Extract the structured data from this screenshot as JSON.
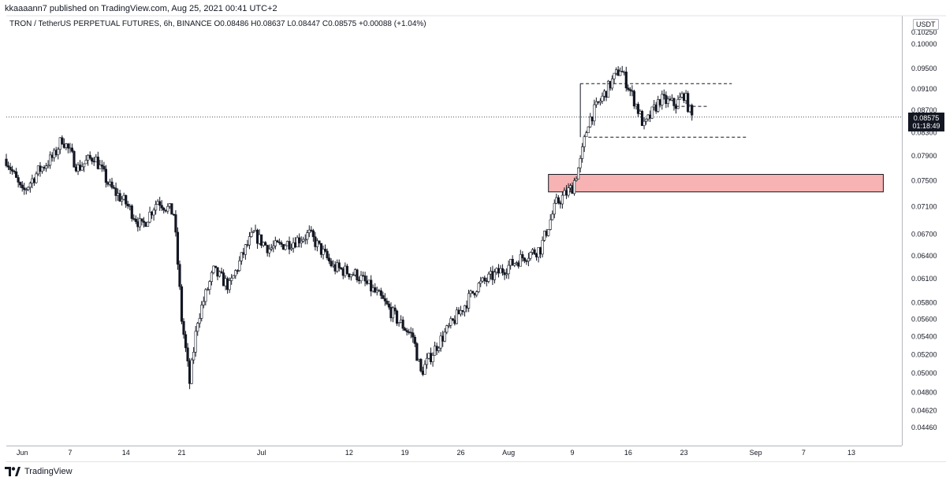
{
  "header": {
    "publisher": "kkaaaann7 published on TradingView.com, Aug 25, 2021 00:41 UTC+2",
    "symbol": "TRON / TetherUS PERPETUAL FUTURES, 6h, BINANCE",
    "ohlc": "O0.08486 H0.08637 L0.08447 C0.08575 +0.00088 (+1.04%)"
  },
  "price_axis": {
    "unit": "USDT",
    "last_price": "0.08575",
    "countdown": "01:18:49"
  },
  "footer": {
    "brand": "TradingView"
  },
  "colors": {
    "up": "#ffffff",
    "down": "#131722",
    "zone_fill": "#f7b3b3",
    "zone_border": "#131722"
  },
  "chart_data": {
    "type": "candlestick",
    "scale": "log",
    "x_labels": [
      "Jun",
      "7",
      "14",
      "21",
      "Jul",
      "12",
      "19",
      "26",
      "Aug",
      "9",
      "16",
      "23",
      "Sep",
      "7",
      "13"
    ],
    "y_ticks": [
      "0.10250",
      "0.10000",
      "0.09500",
      "0.09100",
      "0.08700",
      "0.08300",
      "0.07900",
      "0.07500",
      "0.07100",
      "0.06700",
      "0.06400",
      "0.06100",
      "0.05800",
      "0.05600",
      "0.05400",
      "0.05200",
      "0.05000",
      "0.04800",
      "0.04620",
      "0.04460"
    ],
    "ylim": [
      0.0438,
      0.1035
    ],
    "last_price": 0.08575,
    "path": [
      [
        "2021-05-30",
        0.0785
      ],
      [
        "2021-06-01",
        0.073
      ],
      [
        "2021-06-03",
        0.0765
      ],
      [
        "2021-06-05",
        0.079
      ],
      [
        "2021-06-06",
        0.082
      ],
      [
        "2021-06-08",
        0.077
      ],
      [
        "2021-06-10",
        0.079
      ],
      [
        "2021-06-12",
        0.074
      ],
      [
        "2021-06-14",
        0.0715
      ],
      [
        "2021-06-16",
        0.068
      ],
      [
        "2021-06-18",
        0.072
      ],
      [
        "2021-06-20",
        0.07
      ],
      [
        "2021-06-21",
        0.056
      ],
      [
        "2021-06-22",
        0.049
      ],
      [
        "2021-06-23",
        0.056
      ],
      [
        "2021-06-25",
        0.062
      ],
      [
        "2021-06-27",
        0.06
      ],
      [
        "2021-06-29",
        0.065
      ],
      [
        "2021-06-30",
        0.067
      ],
      [
        "2021-07-02",
        0.065
      ],
      [
        "2021-07-05",
        0.066
      ],
      [
        "2021-07-07",
        0.067
      ],
      [
        "2021-07-10",
        0.0625
      ],
      [
        "2021-07-13",
        0.0615
      ],
      [
        "2021-07-16",
        0.0585
      ],
      [
        "2021-07-18",
        0.056
      ],
      [
        "2021-07-20",
        0.054
      ],
      [
        "2021-07-21",
        0.05
      ],
      [
        "2021-07-23",
        0.053
      ],
      [
        "2021-07-26",
        0.057
      ],
      [
        "2021-07-28",
        0.06
      ],
      [
        "2021-07-31",
        0.062
      ],
      [
        "2021-08-03",
        0.064
      ],
      [
        "2021-08-05",
        0.065
      ],
      [
        "2021-08-07",
        0.0715
      ],
      [
        "2021-08-09",
        0.074
      ],
      [
        "2021-08-10",
        0.078
      ],
      [
        "2021-08-11",
        0.085
      ],
      [
        "2021-08-13",
        0.09
      ],
      [
        "2021-08-15",
        0.095
      ],
      [
        "2021-08-17",
        0.088
      ],
      [
        "2021-08-18",
        0.084
      ],
      [
        "2021-08-20",
        0.089
      ],
      [
        "2021-08-22",
        0.088
      ],
      [
        "2021-08-23",
        0.09
      ],
      [
        "2021-08-24",
        0.08575
      ]
    ],
    "zone": {
      "from": "2021-08-06",
      "to": "2021-09-17",
      "top": 0.076,
      "bottom": 0.07325
    },
    "levels": [
      {
        "from": "2021-08-10",
        "to": "2021-08-29",
        "price": 0.092
      },
      {
        "from": "2021-08-22",
        "to": "2021-08-26",
        "price": 0.0877
      },
      {
        "from": "2021-08-11",
        "to": "2021-08-31",
        "price": 0.0822
      }
    ]
  }
}
